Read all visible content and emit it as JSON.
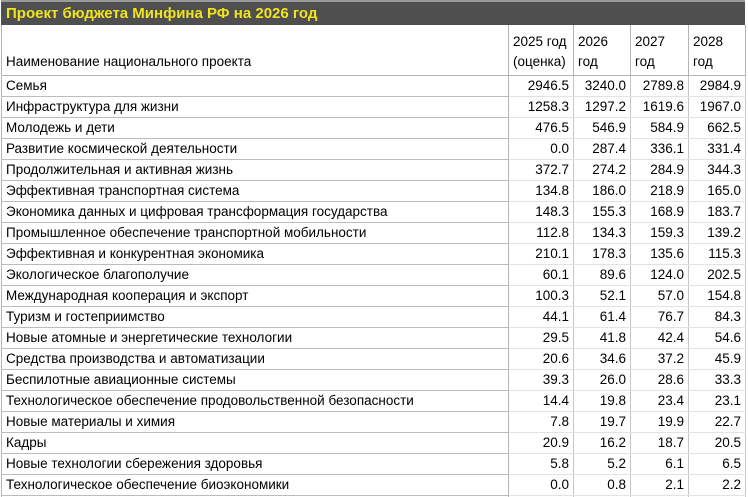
{
  "title_bar": {
    "title": "Проект бюджета Минфина РФ на 2026 год"
  },
  "colors": {
    "title_bar_bg": "#4f4f4f",
    "title_bar_top_strip": "#9a9a9a",
    "title_text": "#f0e41e",
    "grid_strong": "#b3b3b3",
    "grid_light": "#e3e3e3",
    "cell_text": "#000000",
    "table_bg": "#ffffff"
  },
  "chart_data": {
    "type": "table",
    "title": "Проект бюджета Минфина РФ на 2026 год",
    "columns": [
      "Наименование национального проекта",
      "2025 год (оценка)",
      "2026 год",
      "2027 год",
      "2028 год"
    ],
    "rows": [
      {
        "name": "Семья",
        "values": [
          "2946.5",
          "3240.0",
          "2789.8",
          "2984.9"
        ]
      },
      {
        "name": "Инфраструктура для жизни",
        "values": [
          "1258.3",
          "1297.2",
          "1619.6",
          "1967.0"
        ]
      },
      {
        "name": "Молодежь и дети",
        "values": [
          "476.5",
          "546.9",
          "584.9",
          "662.5"
        ]
      },
      {
        "name": "Развитие космической деятельности",
        "values": [
          "0.0",
          "287.4",
          "336.1",
          "331.4"
        ]
      },
      {
        "name": "Продолжительная и активная жизнь",
        "values": [
          "372.7",
          "274.2",
          "284.9",
          "344.3"
        ]
      },
      {
        "name": "Эффективная транспортная система",
        "values": [
          "134.8",
          "186.0",
          "218.9",
          "165.0"
        ]
      },
      {
        "name": "Экономика данных и цифровая трансформация государства",
        "values": [
          "148.3",
          "155.3",
          "168.9",
          "183.7"
        ]
      },
      {
        "name": "Промышленное обеспечение транспортной мобильности",
        "values": [
          "112.8",
          "134.3",
          "159.3",
          "139.2"
        ]
      },
      {
        "name": "Эффективная и конкурентная экономика",
        "values": [
          "210.1",
          "178.3",
          "135.6",
          "115.3"
        ]
      },
      {
        "name": "Экологическое благополучие",
        "values": [
          "60.1",
          "89.6",
          "124.0",
          "202.5"
        ]
      },
      {
        "name": "Международная кооперация и экспорт",
        "values": [
          "100.3",
          "52.1",
          "57.0",
          "154.8"
        ]
      },
      {
        "name": "Туризм и гостеприимство",
        "values": [
          "44.1",
          "61.4",
          "76.7",
          "84.3"
        ]
      },
      {
        "name": "Новые атомные и энергетические технологии",
        "values": [
          "29.5",
          "41.8",
          "42.4",
          "54.6"
        ]
      },
      {
        "name": "Средства производства и автоматизации",
        "values": [
          "20.6",
          "34.6",
          "37.2",
          "45.9"
        ]
      },
      {
        "name": "Беспилотные авиационные системы",
        "values": [
          "39.3",
          "26.0",
          "28.6",
          "33.3"
        ]
      },
      {
        "name": "Технологическое обеспечение продовольственной безопасности",
        "values": [
          "14.4",
          "19.8",
          "23.4",
          "23.1"
        ]
      },
      {
        "name": "Новые материалы и химия",
        "values": [
          "7.8",
          "19.7",
          "19.9",
          "22.7"
        ]
      },
      {
        "name": "Кадры",
        "values": [
          "20.9",
          "16.2",
          "18.7",
          "20.5"
        ]
      },
      {
        "name": "Новые технологии сбережения здоровья",
        "values": [
          "5.8",
          "5.2",
          "6.1",
          "6.5"
        ]
      },
      {
        "name": "Технологическое обеспечение биоэкономики",
        "values": [
          "0.0",
          "0.8",
          "2.1",
          "2.2"
        ]
      }
    ]
  }
}
